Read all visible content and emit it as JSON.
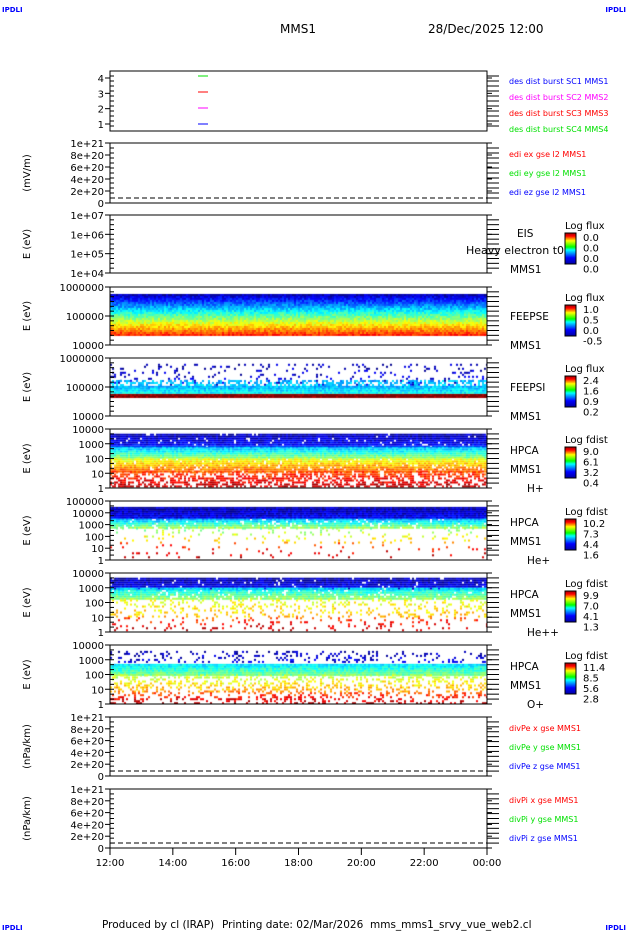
{
  "header": {
    "title": "MMS1",
    "date": "28/Dec/2025 12:00"
  },
  "corner_label": "IPDLI",
  "footer": {
    "produced": "Produced by cl (IRAP)",
    "printing": "Printing date: 02/Mar/2026",
    "file": "mms_mms1_srvy_vue_web2.cl"
  },
  "colors": {
    "blue": "#0000ff",
    "magenta": "#ff00ff",
    "red": "#ff0000",
    "green": "#00e000"
  },
  "chart_data": [
    {
      "type": "line",
      "ylabel": "",
      "yticks": [
        "1",
        "2",
        "3",
        "4"
      ],
      "legend": [
        {
          "text": "des dist burst SC1 MMS1",
          "color": "#0000ff"
        },
        {
          "text": "des dist burst SC2 MMS2",
          "color": "#ff00ff"
        },
        {
          "text": "des dist burst SC3 MMS3",
          "color": "#ff0000"
        },
        {
          "text": "des dist burst SC4 MMS4",
          "color": "#00e000"
        }
      ]
    },
    {
      "type": "line",
      "ylabel": "(mV/m)",
      "yticks": [
        "0",
        "2e+20",
        "4e+20",
        "6e+20",
        "8e+20",
        "1e+21"
      ],
      "legend": [
        {
          "text": "edi ex gse l2 MMS1",
          "color": "#ff0000"
        },
        {
          "text": "edi ey gse l2 MMS1",
          "color": "#00e000"
        },
        {
          "text": "edi ez gse l2 MMS1",
          "color": "#0000ff"
        }
      ]
    },
    {
      "type": "heatmap",
      "ylabel": "E (eV)",
      "yticks": [
        "1e+04",
        "1e+05",
        "1e+06",
        "1e+07"
      ],
      "labels": [
        "EIS",
        "Heavy electron t0",
        "MMS1"
      ],
      "cbar": {
        "title": "Log flux",
        "ticks": [
          "0.0",
          "0.0",
          "0.0",
          "0.0"
        ]
      }
    },
    {
      "type": "heatmap",
      "ylabel": "E (eV)",
      "yticks": [
        "10000",
        "100000",
        "1000000"
      ],
      "labels": [
        "FEEPSE",
        "MMS1"
      ],
      "cbar": {
        "title": "Log flux",
        "ticks": [
          "1.0",
          "0.5",
          "0.0",
          "-0.5"
        ]
      }
    },
    {
      "type": "heatmap",
      "ylabel": "E (eV)",
      "yticks": [
        "10000",
        "100000",
        "1000000"
      ],
      "labels": [
        "FEEPSI",
        "MMS1"
      ],
      "cbar": {
        "title": "Log flux",
        "ticks": [
          "2.4",
          "1.6",
          "0.9",
          "0.2"
        ]
      }
    },
    {
      "type": "heatmap",
      "ylabel": "E (eV)",
      "yticks": [
        "1",
        "10",
        "100",
        "1000",
        "10000"
      ],
      "labels": [
        "HPCA",
        "MMS1",
        "H+"
      ],
      "cbar": {
        "title": "Log fdist",
        "ticks": [
          "9.0",
          "6.1",
          "3.2",
          "0.4"
        ]
      }
    },
    {
      "type": "heatmap",
      "ylabel": "E (eV)",
      "yticks": [
        "1",
        "10",
        "100",
        "1000",
        "10000",
        "100000"
      ],
      "labels": [
        "HPCA",
        "MMS1",
        "He+"
      ],
      "cbar": {
        "title": "Log fdist",
        "ticks": [
          "10.2",
          "7.3",
          "4.4",
          "1.6"
        ]
      }
    },
    {
      "type": "heatmap",
      "ylabel": "E (eV)",
      "yticks": [
        "1",
        "10",
        "100",
        "1000",
        "10000"
      ],
      "labels": [
        "HPCA",
        "MMS1",
        "He++"
      ],
      "cbar": {
        "title": "Log fdist",
        "ticks": [
          "9.9",
          "7.0",
          "4.1",
          "1.3"
        ]
      }
    },
    {
      "type": "heatmap",
      "ylabel": "E (eV)",
      "yticks": [
        "1",
        "10",
        "100",
        "1000",
        "10000"
      ],
      "labels": [
        "HPCA",
        "MMS1",
        "O+"
      ],
      "cbar": {
        "title": "Log fdist",
        "ticks": [
          "11.4",
          "8.5",
          "5.6",
          "2.8"
        ]
      }
    },
    {
      "type": "line",
      "ylabel": "(nPa/km)",
      "yticks": [
        "0",
        "2e+20",
        "4e+20",
        "6e+20",
        "8e+20",
        "1e+21"
      ],
      "legend": [
        {
          "text": "divPe x gse MMS1",
          "color": "#ff0000"
        },
        {
          "text": "divPe y gse MMS1",
          "color": "#00e000"
        },
        {
          "text": "divPe z gse MMS1",
          "color": "#0000ff"
        }
      ]
    },
    {
      "type": "line",
      "ylabel": "(nPa/km)",
      "yticks": [
        "0",
        "2e+20",
        "4e+20",
        "6e+20",
        "8e+20",
        "1e+21"
      ],
      "legend": [
        {
          "text": "divPi x gse MMS1",
          "color": "#ff0000"
        },
        {
          "text": "divPi y gse MMS1",
          "color": "#00e000"
        },
        {
          "text": "divPi z gse MMS1",
          "color": "#0000ff"
        }
      ]
    }
  ],
  "xaxis": {
    "ticks": [
      "12:00",
      "14:00",
      "16:00",
      "18:00",
      "20:00",
      "22:00",
      "00:00"
    ]
  }
}
